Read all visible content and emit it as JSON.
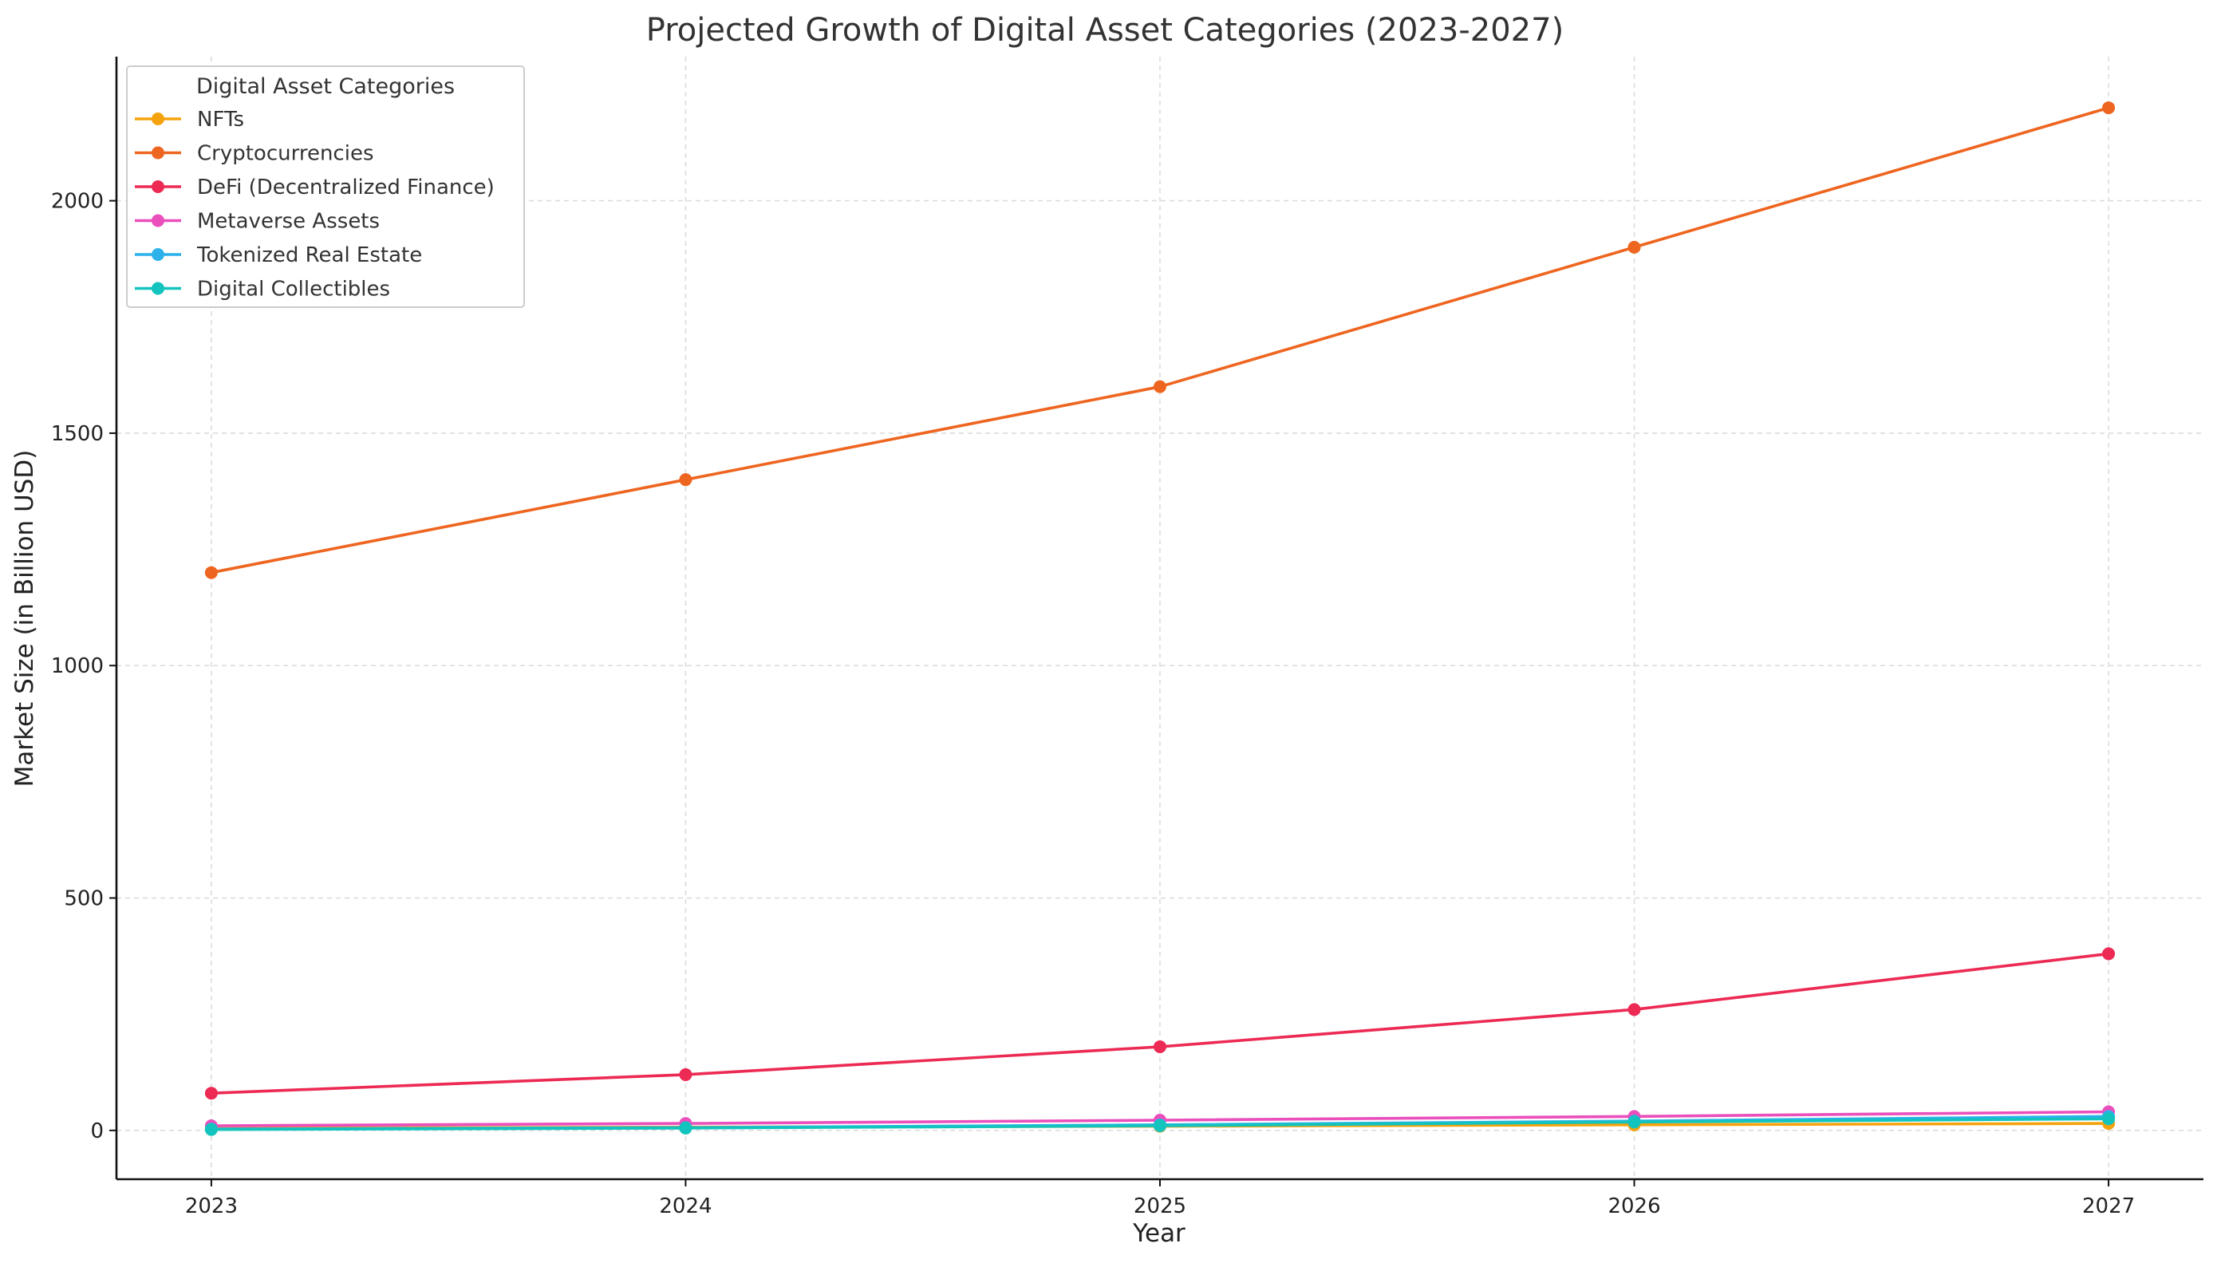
{
  "chart_data": {
    "type": "line",
    "title": "Projected Growth of Digital Asset Categories (2023-2027)",
    "xlabel": "Year",
    "ylabel": "Market Size (in Billion USD)",
    "x": [
      2023,
      2024,
      2025,
      2026,
      2027
    ],
    "x_tick_labels": [
      "2023",
      "2024",
      "2025",
      "2026",
      "2027"
    ],
    "y_ticks": [
      0,
      500,
      1000,
      1500,
      2000
    ],
    "y_tick_labels": [
      "0",
      "500",
      "1000",
      "1500",
      "2000"
    ],
    "xlim": [
      2022.8,
      2027.2
    ],
    "ylim": [
      -105,
      2310
    ],
    "grid": true,
    "legend": {
      "title": "Digital Asset Categories",
      "placement": "top-left"
    },
    "series": [
      {
        "name": "NFTs",
        "color": "#f5a30d",
        "values": [
          5,
          7,
          9,
          12,
          15
        ]
      },
      {
        "name": "Cryptocurrencies",
        "color": "#ee6520",
        "values": [
          1200,
          1400,
          1600,
          1900,
          2200
        ]
      },
      {
        "name": "DeFi (Decentralized Finance)",
        "color": "#ec2a54",
        "values": [
          80,
          120,
          180,
          260,
          380
        ]
      },
      {
        "name": "Metaverse Assets",
        "color": "#ea4fbc",
        "values": [
          10,
          15,
          22,
          30,
          40
        ]
      },
      {
        "name": "Tokenized Real Estate",
        "color": "#2cb1ea",
        "values": [
          3,
          6,
          12,
          20,
          30
        ]
      },
      {
        "name": "Digital Collectibles",
        "color": "#12c4bd",
        "values": [
          2,
          5,
          10,
          18,
          25
        ]
      }
    ]
  }
}
